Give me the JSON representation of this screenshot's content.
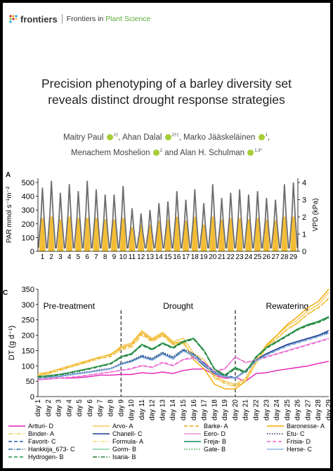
{
  "header": {
    "logo_text": "frontiers",
    "journal_prefix": "Frontiers in ",
    "journal_name": "Plant Science"
  },
  "title_lines": [
    "Precision phenotyping of a barley diversity set",
    "reveals distinct drought response strategies"
  ],
  "authors": {
    "line1": [
      {
        "name": "Maitry Paul",
        "sup": "1†"
      },
      {
        "name": "Ahan Dalal",
        "sup": "2†‡"
      },
      {
        "name": "Marko Jääskeläinen",
        "sup": "1"
      }
    ],
    "line2": [
      {
        "name": "Menachem Moshelion",
        "sup": "2"
      },
      {
        "name": "Alan H. Schulman",
        "sup": "1,3*"
      }
    ],
    "and": "and"
  },
  "panel_a": {
    "label": "A",
    "ylabel_left": "PAR mmol s⁻¹m⁻²",
    "ylabel_right": "VPD (kPa)",
    "left_ticks": [
      0,
      100,
      200,
      300,
      400,
      500
    ],
    "right_ticks": [
      0,
      1,
      2,
      3,
      4
    ],
    "days": [
      1,
      2,
      3,
      4,
      5,
      6,
      7,
      8,
      9,
      10,
      11,
      12,
      13,
      14,
      15,
      16,
      17,
      18,
      19,
      20,
      21,
      22,
      23,
      24,
      25,
      26,
      27,
      28,
      29
    ],
    "colors": {
      "vpd": "#6e6e6e",
      "par": "#f2b61f"
    },
    "vpd_peak": [
      3.7,
      4.1,
      3.4,
      3.9,
      3.5,
      4.1,
      3.6,
      3.3,
      3.3,
      3.8,
      2.5,
      2.2,
      2.4,
      2.8,
      2.9,
      3.5,
      3.0,
      3.6,
      2.8,
      3.9,
      3.1,
      3.4,
      3.6,
      3.3,
      3.5,
      3.1,
      3.0,
      3.9,
      4.0
    ],
    "par_peak": [
      250,
      260,
      240,
      260,
      250,
      250,
      250,
      240,
      240,
      250,
      180,
      200,
      200,
      230,
      240,
      260,
      230,
      260,
      200,
      260,
      240,
      250,
      250,
      240,
      250,
      240,
      230,
      260,
      260
    ]
  },
  "chart_data": {
    "type": "line",
    "panel_label": "C",
    "ylabel": "DT (g d⁻¹)",
    "ylim": [
      0,
      350
    ],
    "yticks": [
      0,
      50,
      100,
      150,
      200,
      250,
      300,
      350
    ],
    "x": [
      "day 1",
      "day 2",
      "day 3",
      "day 4",
      "day 5",
      "day 6",
      "day 7",
      "day 8",
      "day 9",
      "day 10",
      "day 11",
      "day 12",
      "day 13",
      "day 14",
      "day 15",
      "day 16",
      "day 17",
      "day 18",
      "day 19",
      "day 20",
      "day 21",
      "day 22",
      "day 23",
      "day 24",
      "day 25",
      "day 26",
      "day 27",
      "day 28",
      "day 29"
    ],
    "phases": [
      {
        "label": "Pre-treatment",
        "center_day": 4
      },
      {
        "label": "Drought",
        "center_day": 14.5
      },
      {
        "label": "Rewatering",
        "center_day": 25
      }
    ],
    "phase_dividers": [
      9,
      20
    ],
    "series": [
      {
        "name": "Artturi- D",
        "color": "#e61fb8",
        "dash": "solid",
        "values": [
          55,
          57,
          60,
          60,
          62,
          65,
          70,
          70,
          72,
          72,
          78,
          75,
          80,
          75,
          85,
          90,
          90,
          70,
          60,
          62,
          50,
          75,
          78,
          85,
          90,
          95,
          100,
          108,
          115
        ]
      },
      {
        "name": "Arvo- A",
        "color": "#f5c85a",
        "dash": "solid",
        "values": [
          75,
          80,
          90,
          100,
          110,
          120,
          130,
          135,
          165,
          175,
          215,
          190,
          210,
          180,
          190,
          140,
          120,
          70,
          50,
          40,
          60,
          120,
          170,
          200,
          230,
          250,
          280,
          300,
          340
        ]
      },
      {
        "name": "Barke- A",
        "color": "#e8a21a",
        "dash": "dashed",
        "values": [
          70,
          75,
          85,
          95,
          105,
          115,
          125,
          130,
          155,
          165,
          205,
          180,
          200,
          170,
          175,
          130,
          110,
          65,
          45,
          35,
          55,
          110,
          160,
          190,
          220,
          240,
          270,
          290,
          320
        ]
      },
      {
        "name": "Baronesse- A",
        "color": "#f0a800",
        "dash": "solid",
        "values": [
          70,
          78,
          88,
          98,
          108,
          118,
          128,
          138,
          160,
          170,
          210,
          185,
          205,
          175,
          180,
          120,
          90,
          40,
          25,
          25,
          50,
          110,
          165,
          200,
          235,
          260,
          290,
          310,
          350
        ]
      },
      {
        "name": "Binder- A",
        "color": "#f2ce5c",
        "dash": "dashdot",
        "values": [
          68,
          74,
          84,
          94,
          104,
          114,
          124,
          132,
          152,
          160,
          200,
          178,
          198,
          168,
          172,
          125,
          105,
          60,
          42,
          32,
          52,
          108,
          158,
          188,
          218,
          238,
          268,
          288,
          318
        ]
      },
      {
        "name": "Chanell- C",
        "color": "#1c3a8c",
        "dash": "solid",
        "values": [
          60,
          62,
          65,
          70,
          75,
          80,
          85,
          90,
          105,
          115,
          130,
          120,
          140,
          125,
          150,
          130,
          100,
          75,
          65,
          60,
          85,
          120,
          140,
          155,
          170,
          180,
          190,
          200,
          215
        ]
      },
      {
        "name": "Eero- D",
        "color": "#e98fe0",
        "dash": "solid",
        "values": [
          55,
          58,
          60,
          62,
          65,
          70,
          75,
          80,
          85,
          90,
          100,
          95,
          110,
          100,
          120,
          125,
          110,
          80,
          90,
          130,
          110,
          120,
          130,
          140,
          150,
          160,
          170,
          180,
          190
        ]
      },
      {
        "name": "Etu- C",
        "color": "#1a2a5a",
        "dash": "dotted",
        "values": [
          62,
          64,
          68,
          72,
          78,
          82,
          88,
          92,
          108,
          118,
          135,
          125,
          145,
          130,
          155,
          140,
          110,
          80,
          65,
          58,
          82,
          118,
          138,
          152,
          168,
          178,
          188,
          198,
          212
        ]
      },
      {
        "name": "Favorit- C",
        "color": "#1e5fa8",
        "dash": "dashed",
        "values": [
          60,
          63,
          66,
          70,
          75,
          80,
          85,
          90,
          104,
          114,
          128,
          118,
          138,
          122,
          148,
          135,
          105,
          78,
          70,
          62,
          80,
          115,
          135,
          150,
          165,
          175,
          185,
          195,
          208
        ]
      },
      {
        "name": "Formula- A",
        "color": "#f7d67a",
        "dash": "dashdot",
        "values": [
          72,
          78,
          88,
          98,
          108,
          118,
          128,
          134,
          158,
          168,
          208,
          182,
          202,
          172,
          178,
          128,
          108,
          62,
          44,
          34,
          54,
          112,
          162,
          192,
          222,
          242,
          272,
          292,
          322
        ]
      },
      {
        "name": "Freja- B",
        "color": "#138a5a",
        "dash": "solid",
        "values": [
          65,
          68,
          72,
          78,
          85,
          92,
          100,
          108,
          130,
          140,
          170,
          155,
          175,
          160,
          180,
          190,
          150,
          90,
          70,
          95,
          80,
          130,
          160,
          180,
          200,
          220,
          235,
          245,
          260
        ]
      },
      {
        "name": "Frisia- D",
        "color": "#f064c8",
        "dash": "dashed",
        "values": [
          56,
          58,
          61,
          63,
          66,
          71,
          76,
          80,
          86,
          92,
          102,
          96,
          112,
          102,
          122,
          128,
          112,
          82,
          92,
          128,
          112,
          118,
          128,
          138,
          148,
          158,
          168,
          178,
          188
        ]
      },
      {
        "name": "Hankkija_673- C",
        "color": "#2a6ea8",
        "dash": "dashdot",
        "values": [
          61,
          63,
          67,
          71,
          76,
          81,
          86,
          91,
          106,
          116,
          132,
          122,
          142,
          127,
          152,
          138,
          108,
          79,
          68,
          60,
          83,
          117,
          137,
          152,
          167,
          177,
          187,
          197,
          210
        ]
      },
      {
        "name": "Gorm- B",
        "color": "#7fd0a0",
        "dash": "solid",
        "values": [
          64,
          67,
          71,
          77,
          84,
          91,
          99,
          107,
          128,
          138,
          168,
          153,
          173,
          158,
          178,
          188,
          148,
          88,
          68,
          92,
          78,
          128,
          158,
          178,
          198,
          218,
          232,
          242,
          258
        ]
      },
      {
        "name": "Gate- B",
        "color": "#3aa845",
        "dash": "dotted",
        "values": [
          66,
          69,
          73,
          79,
          86,
          93,
          101,
          109,
          131,
          141,
          171,
          156,
          176,
          161,
          181,
          191,
          151,
          91,
          71,
          96,
          81,
          131,
          161,
          181,
          201,
          221,
          236,
          246,
          262
        ]
      },
      {
        "name": "Herse- C",
        "color": "#8fb8e8",
        "dash": "solid",
        "values": [
          60,
          62,
          66,
          70,
          76,
          81,
          86,
          90,
          104,
          113,
          128,
          118,
          138,
          123,
          148,
          133,
          103,
          77,
          66,
          59,
          82,
          116,
          136,
          151,
          166,
          176,
          186,
          196,
          206
        ]
      },
      {
        "name": "Hydrogen- B",
        "color": "#1e8f4a",
        "dash": "dashed",
        "values": [
          63,
          66,
          70,
          76,
          83,
          90,
          98,
          106,
          127,
          137,
          167,
          152,
          172,
          157,
          177,
          187,
          147,
          87,
          67,
          90,
          77,
          127,
          157,
          177,
          197,
          217,
          231,
          241,
          256
        ]
      },
      {
        "name": "Isaria- B",
        "color": "#2b7a3a",
        "dash": "dashdot",
        "values": [
          65,
          68,
          72,
          78,
          85,
          92,
          100,
          108,
          129,
          139,
          169,
          154,
          174,
          159,
          179,
          189,
          149,
          89,
          69,
          93,
          79,
          129,
          159,
          179,
          199,
          219,
          233,
          243,
          259
        ]
      }
    ]
  }
}
